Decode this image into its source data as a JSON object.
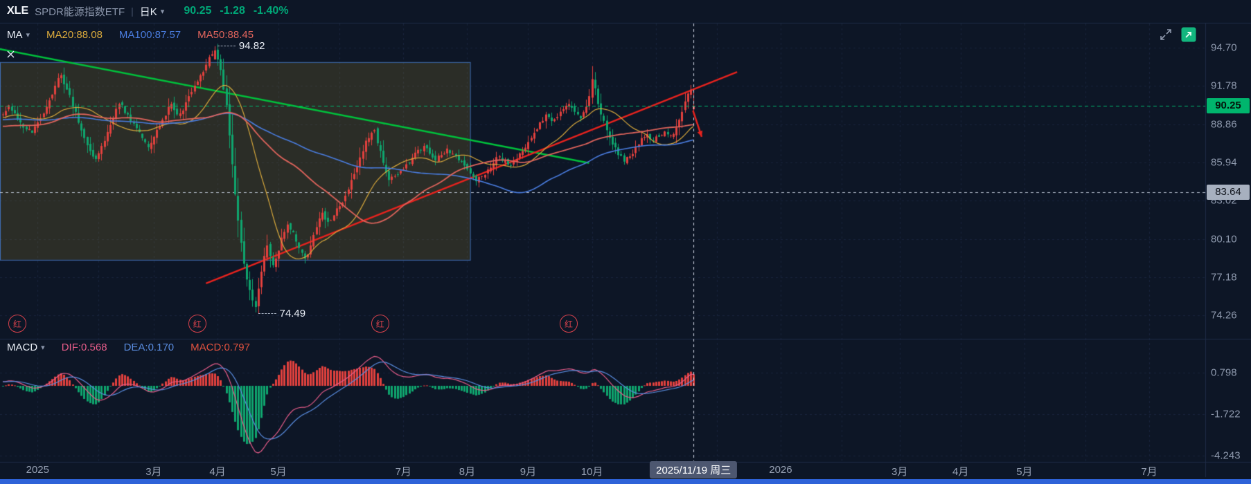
{
  "header": {
    "symbol": "XLE",
    "name": "SPDR能源指数ETF",
    "separator": "|",
    "period": "日K",
    "caret": "▾",
    "price": "90.25",
    "change": "-1.28",
    "change_pct": "-1.40%"
  },
  "ma_legend": {
    "label": "MA",
    "caret": "▾",
    "items": [
      {
        "label": "MA20:88.08",
        "color": "#d9a93c"
      },
      {
        "label": "MA100:87.57",
        "color": "#4a7de0"
      },
      {
        "label": "MA50:88.45",
        "color": "#e0645c"
      }
    ]
  },
  "macd_legend": {
    "label": "MACD",
    "caret": "▾",
    "items": [
      {
        "label": "DIF:0.568",
        "color": "#e85d8a"
      },
      {
        "label": "DEA:0.170",
        "color": "#5a8de0"
      },
      {
        "label": "MACD:0.797",
        "color": "#e0523f"
      }
    ]
  },
  "price_axis": {
    "ticks": [
      "94.70",
      "91.78",
      "88.86",
      "85.94",
      "83.02",
      "80.10",
      "77.18",
      "74.26"
    ],
    "current": {
      "label": "90.25",
      "value": 90.25
    },
    "marked": {
      "label": "83.64",
      "value": 83.64
    }
  },
  "macd_axis": {
    "ticks": [
      "0.798",
      "-1.722",
      "-4.243"
    ]
  },
  "time_axis": {
    "labels": [
      {
        "text": "2025",
        "day": 0
      },
      {
        "text": "3月",
        "day": 40
      },
      {
        "text": "4月",
        "day": 62
      },
      {
        "text": "5月",
        "day": 83
      },
      {
        "text": "7月",
        "day": 126
      },
      {
        "text": "8月",
        "day": 148
      },
      {
        "text": "9月",
        "day": 169
      },
      {
        "text": "10月",
        "day": 191
      },
      {
        "text": "2026",
        "day": 256
      },
      {
        "text": "3月",
        "day": 297
      },
      {
        "text": "4月",
        "day": 318
      },
      {
        "text": "5月",
        "day": 340
      },
      {
        "text": "7月",
        "day": 383
      }
    ],
    "cursor": {
      "text": "2025/11/19 周三",
      "day": 226
    }
  },
  "annotations": {
    "high": {
      "text": "94.82",
      "day": 61,
      "price": 94.82
    },
    "low": {
      "text": "74.49",
      "day": 75,
      "price": 74.49
    }
  },
  "markers": {
    "text": "红",
    "days": [
      -7,
      55,
      118,
      183
    ]
  },
  "colors": {
    "up": "#e2413e",
    "down": "#0fa56e",
    "ma20": "#d9a93c",
    "ma50": "#e0645c",
    "ma100": "#4a7de0",
    "dif": "#e85d8a",
    "dea": "#5a8de0",
    "trend_green": "#00c23c",
    "trend_red": "#e8231e",
    "accent_green": "#00a878",
    "current_badge_bg": "#00b56d",
    "current_badge_fg": "#04150c",
    "marked_badge_bg": "#a7b0bf",
    "marked_badge_fg": "#10141c",
    "crosshair": "#d5dbe8",
    "grid": "#18253c",
    "divider": "#1f2c47",
    "selection_fill": "rgba(166,140,46,0.20)",
    "selection_border": "#3f6db3",
    "bottom_strip": "#2e63d8"
  },
  "chart_data": {
    "type": "candlestick",
    "title": "XLE SPDR能源指数ETF 日K",
    "ylabel": "price",
    "price_gridline_step": 2.92,
    "visible_price_range": [
      74.26,
      94.7
    ],
    "current_price": 90.25,
    "marked_price": 83.64,
    "ma_current": {
      "MA20": 88.08,
      "MA50": 88.45,
      "MA100": 87.57
    },
    "macd_current": {
      "DIF": 0.568,
      "DEA": 0.17,
      "MACD": 0.797
    },
    "macd_gridlines": [
      0.798,
      -1.722,
      -4.243
    ],
    "grid_month_days": [
      0,
      21,
      40,
      62,
      83,
      104,
      126,
      148,
      169,
      191,
      213,
      234,
      256,
      277,
      297,
      318,
      340,
      361,
      383
    ],
    "close_path": [
      [
        -115,
        88.0
      ],
      [
        -100,
        90.0
      ],
      [
        -85,
        89.0
      ],
      [
        -70,
        91.0
      ],
      [
        -55,
        88.5
      ],
      [
        -40,
        87.5
      ],
      [
        -25,
        89.5
      ],
      [
        -13,
        89.5
      ],
      [
        -10,
        90.3
      ],
      [
        -6,
        89.0
      ],
      [
        -2,
        88.2
      ],
      [
        0,
        89.0
      ],
      [
        3,
        90.2
      ],
      [
        6,
        91.8
      ],
      [
        8,
        92.6
      ],
      [
        10,
        91.5
      ],
      [
        13,
        89.8
      ],
      [
        16,
        87.8
      ],
      [
        18,
        86.8
      ],
      [
        20,
        86.2
      ],
      [
        22,
        87.2
      ],
      [
        25,
        88.8
      ],
      [
        28,
        90.4
      ],
      [
        31,
        89.6
      ],
      [
        33,
        88.9
      ],
      [
        36,
        87.8
      ],
      [
        38,
        87.1
      ],
      [
        40,
        87.9
      ],
      [
        43,
        89.2
      ],
      [
        46,
        90.4
      ],
      [
        48,
        89.6
      ],
      [
        50,
        89.9
      ],
      [
        52,
        91.0
      ],
      [
        54,
        91.8
      ],
      [
        56,
        92.6
      ],
      [
        58,
        93.4
      ],
      [
        60,
        94.2
      ],
      [
        61,
        94.5
      ],
      [
        62,
        93.8
      ],
      [
        63,
        93.0
      ],
      [
        64,
        91.5
      ],
      [
        65,
        90.3
      ],
      [
        66,
        88.0
      ],
      [
        67,
        85.8
      ],
      [
        68,
        83.5
      ],
      [
        69,
        81.5
      ],
      [
        70,
        79.8
      ],
      [
        71,
        78.2
      ],
      [
        72,
        77.0
      ],
      [
        73,
        76.2
      ],
      [
        74,
        75.4
      ],
      [
        75,
        74.9
      ],
      [
        76,
        76.3
      ],
      [
        77,
        77.6
      ],
      [
        78,
        78.8
      ],
      [
        79,
        79.6
      ],
      [
        80,
        78.8
      ],
      [
        81,
        78.1
      ],
      [
        82,
        78.6
      ],
      [
        83,
        79.2
      ],
      [
        84,
        80.2
      ],
      [
        86,
        81.2
      ],
      [
        88,
        80.6
      ],
      [
        90,
        79.4
      ],
      [
        92,
        78.6
      ],
      [
        94,
        79.6
      ],
      [
        96,
        81.0
      ],
      [
        98,
        82.1
      ],
      [
        100,
        81.4
      ],
      [
        102,
        81.9
      ],
      [
        104,
        82.6
      ],
      [
        106,
        83.4
      ],
      [
        108,
        84.6
      ],
      [
        110,
        85.6
      ],
      [
        112,
        86.8
      ],
      [
        113,
        87.6
      ],
      [
        115,
        88.2
      ],
      [
        116,
        88.4
      ],
      [
        117,
        87.4
      ],
      [
        119,
        85.9
      ],
      [
        121,
        84.6
      ],
      [
        123,
        84.9
      ],
      [
        125,
        85.3
      ],
      [
        127,
        85.8
      ],
      [
        129,
        86.3
      ],
      [
        131,
        86.9
      ],
      [
        133,
        87.2
      ],
      [
        135,
        86.6
      ],
      [
        137,
        86.1
      ],
      [
        139,
        86.5
      ],
      [
        141,
        87.0
      ],
      [
        143,
        86.6
      ],
      [
        145,
        86.1
      ],
      [
        147,
        85.7
      ],
      [
        149,
        85.1
      ],
      [
        151,
        84.5
      ],
      [
        153,
        84.9
      ],
      [
        155,
        85.4
      ],
      [
        157,
        85.9
      ],
      [
        159,
        86.4
      ],
      [
        161,
        86.1
      ],
      [
        163,
        85.7
      ],
      [
        165,
        86.2
      ],
      [
        167,
        86.8
      ],
      [
        169,
        87.5
      ],
      [
        171,
        88.2
      ],
      [
        173,
        89.0
      ],
      [
        175,
        89.6
      ],
      [
        177,
        89.1
      ],
      [
        179,
        89.4
      ],
      [
        181,
        90.0
      ],
      [
        183,
        90.4
      ],
      [
        185,
        89.8
      ],
      [
        187,
        89.3
      ],
      [
        189,
        90.2
      ],
      [
        190,
        91.0
      ],
      [
        191,
        92.3
      ],
      [
        192,
        91.6
      ],
      [
        193,
        90.4
      ],
      [
        194,
        89.6
      ],
      [
        196,
        88.4
      ],
      [
        198,
        87.3
      ],
      [
        200,
        86.5
      ],
      [
        202,
        86.0
      ],
      [
        204,
        86.4
      ],
      [
        206,
        87.1
      ],
      [
        208,
        87.8
      ],
      [
        210,
        88.1
      ],
      [
        212,
        87.6
      ],
      [
        214,
        87.9
      ],
      [
        216,
        88.3
      ],
      [
        218,
        88.0
      ],
      [
        220,
        88.6
      ],
      [
        221,
        89.2
      ],
      [
        222,
        89.8
      ],
      [
        223,
        90.6
      ],
      [
        224,
        91.2
      ],
      [
        225,
        91.5
      ],
      [
        226,
        90.25
      ]
    ],
    "overrides": {
      "61": {
        "open": 93.8,
        "high": 94.82
      },
      "75": {
        "low": 74.49
      },
      "191": {
        "high": 93.3
      },
      "225": {
        "high": 91.85
      },
      "226": {
        "open": 90.0,
        "high": 91.6,
        "low": 89.8
      }
    },
    "trend_lines": [
      {
        "color": "trend_green",
        "from": [
          -13,
          94.6
        ],
        "to": [
          190,
          85.9
        ],
        "width": 2.5
      },
      {
        "color": "trend_red",
        "from": [
          58,
          76.7
        ],
        "to": [
          241,
          92.85
        ],
        "width": 2.5
      }
    ],
    "selection_box": {
      "from_day": -13,
      "to_day": 149,
      "top_price": 93.6,
      "bottom_price": 78.5
    },
    "arrow": {
      "from_day": 225.8,
      "from_price": 89.9,
      "to_day": 228.8,
      "to_price": 87.9
    }
  }
}
